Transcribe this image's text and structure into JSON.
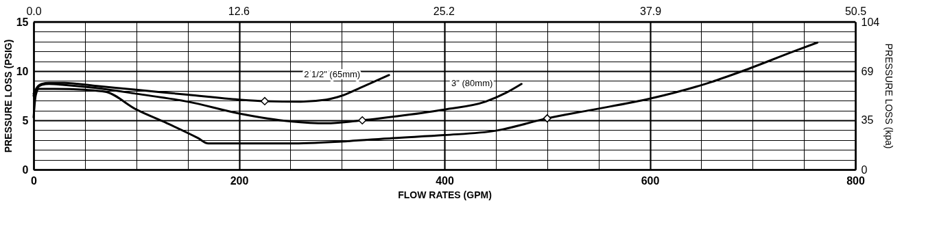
{
  "chart_data": {
    "type": "line",
    "xlabel": "FLOW RATES (GPM)",
    "ylabel": "PRESSURE LOSS (PSIG)",
    "y2label": "PRESSURE LOSS (kpa)",
    "xlim": [
      0,
      800
    ],
    "ylim": [
      0,
      15
    ],
    "xticks": [
      0,
      {
        "value": 50,
        "label": null
      },
      {
        "value": 100,
        "label": null
      },
      {
        "value": 150,
        "label": null
      },
      200,
      {
        "value": 250,
        "label": null
      },
      {
        "value": 300,
        "label": null
      },
      {
        "value": 350,
        "label": null
      },
      400,
      {
        "value": 450,
        "label": null
      },
      {
        "value": 500,
        "label": null
      },
      {
        "value": 550,
        "label": null
      },
      600,
      {
        "value": 650,
        "label": null
      },
      {
        "value": 700,
        "label": null
      },
      {
        "value": 750,
        "label": null
      },
      800
    ],
    "yticks": [
      0,
      {
        "value": 1,
        "label": null
      },
      {
        "value": 2,
        "label": null
      },
      {
        "value": 3,
        "label": null
      },
      {
        "value": 4,
        "label": null
      },
      5,
      {
        "value": 6,
        "label": null
      },
      {
        "value": 7,
        "label": null
      },
      {
        "value": 8,
        "label": null
      },
      {
        "value": 9,
        "label": null
      },
      10,
      {
        "value": 11,
        "label": null
      },
      {
        "value": 12,
        "label": null
      },
      {
        "value": 13,
        "label": null
      },
      {
        "value": 14,
        "label": null
      },
      15
    ],
    "x2lim": [
      0,
      50.5
    ],
    "x2ticks": [
      {
        "value": 0,
        "label": "0.0"
      },
      12.6,
      25.2,
      37.9,
      50.5
    ],
    "y2lim": [
      0,
      104
    ],
    "y2ticks": [
      0,
      35,
      69,
      104
    ],
    "grid": true,
    "line_style": "solid",
    "series": [
      {
        "name": "2 1/2\" (65mm)",
        "color": "#000000",
        "x": [
          0,
          3,
          8,
          15,
          30,
          60,
          100,
          150,
          200,
          225,
          260,
          285,
          300,
          320,
          346
        ],
        "values": [
          7.7,
          8.3,
          8.7,
          8.8,
          8.8,
          8.5,
          8.1,
          7.6,
          7.1,
          6.95,
          6.9,
          7.1,
          7.5,
          8.4,
          9.6
        ]
      },
      {
        "name": "3\" (80mm)",
        "color": "#000000",
        "x": [
          0,
          3,
          8,
          15,
          30,
          60,
          100,
          150,
          200,
          250,
          285,
          320,
          360,
          400,
          440,
          460,
          475
        ],
        "values": [
          7.5,
          8.2,
          8.6,
          8.7,
          8.6,
          8.3,
          7.7,
          6.9,
          5.7,
          4.9,
          4.7,
          5.0,
          5.5,
          6.1,
          6.9,
          7.8,
          8.7
        ]
      },
      {
        "color": "#000000",
        "x": [
          0,
          2,
          5,
          10,
          20,
          50,
          70,
          100,
          130,
          160,
          170,
          200,
          250,
          300,
          350,
          400,
          450,
          500,
          540,
          600,
          660,
          690,
          740,
          763
        ],
        "values": [
          5.3,
          7.5,
          8.2,
          8.2,
          8.2,
          8.1,
          7.9,
          6.1,
          4.7,
          3.2,
          2.65,
          2.65,
          2.65,
          2.85,
          3.2,
          3.5,
          3.95,
          5.2,
          6.0,
          7.2,
          8.9,
          10.0,
          12.0,
          12.9
        ]
      },
      {
        "type": "scatter",
        "marker": "diamond",
        "color": "#ffffff",
        "x": [
          225,
          320,
          500
        ],
        "values": [
          6.95,
          5.0,
          5.2
        ]
      }
    ]
  }
}
